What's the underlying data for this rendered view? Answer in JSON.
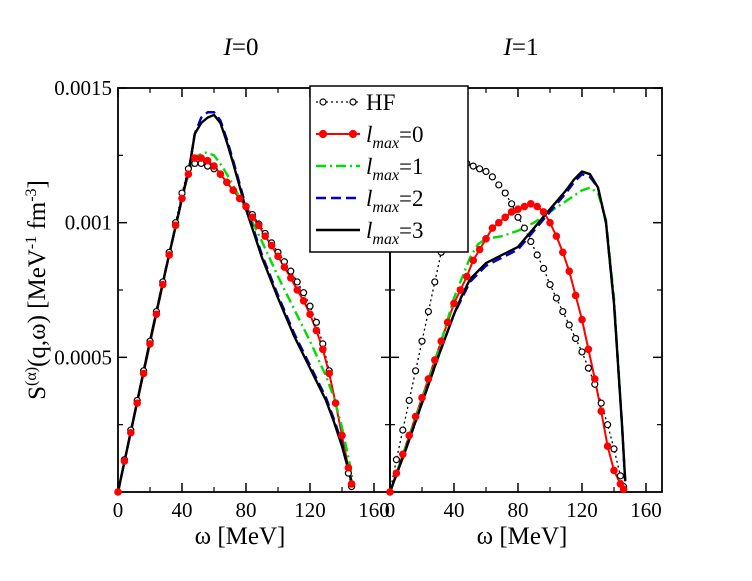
{
  "chart_data": [
    {
      "type": "line",
      "title_var": "I",
      "title_eq": "=0",
      "xlabel": "ω [MeV]",
      "ylabel": "S(α)(q,ω) [MeV-1 fm-3]",
      "ylabel_parts": {
        "S": "S",
        "sup": "(α)",
        "args": "(q,ω) [MeV",
        "sup2": "-1",
        "mid": " fm",
        "sup3": "-3",
        "end": "]"
      },
      "xlim": [
        0,
        170
      ],
      "ylim": [
        0,
        0.0015
      ],
      "xticks": [
        "0",
        "40",
        "80",
        "120",
        "160"
      ],
      "xtick_values": [
        0,
        40,
        80,
        120,
        160
      ],
      "yticks": [
        "0.0005",
        "0.001",
        "0.0015"
      ],
      "ytick_values": [
        0.0005,
        0.001,
        0.0015
      ],
      "series": [
        {
          "name": "HF",
          "color": "#000000",
          "style": "dotted",
          "marker": "open-circle",
          "x": [
            0,
            4,
            8,
            12,
            16,
            20,
            24,
            28,
            32,
            36,
            40,
            44,
            48,
            52,
            56,
            60,
            64,
            68,
            72,
            76,
            80,
            84,
            88,
            92,
            96,
            100,
            104,
            108,
            112,
            116,
            120,
            124,
            128,
            132,
            136,
            140,
            144,
            146
          ],
          "y": [
            0,
            0.00012,
            0.00023,
            0.00034,
            0.00045,
            0.00056,
            0.00067,
            0.00078,
            0.00089,
            0.001,
            0.00111,
            0.0012,
            0.00122,
            0.00122,
            0.00121,
            0.0012,
            0.00118,
            0.00115,
            0.00112,
            0.00109,
            0.00106,
            0.00103,
            0.000995,
            0.00096,
            0.000925,
            0.00089,
            0.000855,
            0.00082,
            0.00078,
            0.00074,
            0.00069,
            0.00063,
            0.00055,
            0.00045,
            0.00033,
            0.00021,
            7e-05,
            2e-05
          ]
        },
        {
          "name": "lmax=0",
          "color": "#ff0000",
          "style": "solid",
          "marker": "filled-circle",
          "x": [
            0,
            4,
            8,
            12,
            16,
            20,
            24,
            28,
            32,
            36,
            40,
            44,
            48,
            52,
            56,
            60,
            64,
            68,
            72,
            76,
            80,
            84,
            88,
            92,
            96,
            100,
            104,
            108,
            112,
            116,
            120,
            124,
            128,
            132,
            136,
            140,
            144,
            146
          ],
          "y": [
            0,
            0.000115,
            0.00022,
            0.00033,
            0.00044,
            0.00055,
            0.00066,
            0.00077,
            0.00088,
            0.00099,
            0.00109,
            0.00118,
            0.00124,
            0.00124,
            0.00123,
            0.00121,
            0.00118,
            0.00115,
            0.00112,
            0.00109,
            0.00106,
            0.00102,
            0.00099,
            0.00095,
            0.000915,
            0.000875,
            0.000835,
            0.000795,
            0.00075,
            0.00071,
            0.00066,
            0.0006,
            0.00053,
            0.00044,
            0.00033,
            0.00021,
            9e-05,
            3e-05
          ]
        },
        {
          "name": "lmax=1",
          "color": "#00dd00",
          "style": "dashdot",
          "marker": "none",
          "x": [
            0,
            10,
            20,
            30,
            40,
            45,
            50,
            55,
            60,
            65,
            70,
            80,
            90,
            100,
            110,
            120,
            130,
            135,
            140,
            145,
            147
          ],
          "y": [
            0,
            0.00028,
            0.00056,
            0.00083,
            0.00109,
            0.0012,
            0.00125,
            0.00126,
            0.00125,
            0.00121,
            0.00116,
            0.00105,
            0.00093,
            0.0008,
            0.00068,
            0.00056,
            0.00043,
            0.00035,
            0.00024,
            0.0001,
            3e-05
          ]
        },
        {
          "name": "lmax=2",
          "color": "#0000cc",
          "style": "dashed",
          "marker": "none",
          "x": [
            0,
            10,
            20,
            30,
            40,
            45,
            48,
            52,
            56,
            60,
            64,
            68,
            72,
            80,
            90,
            100,
            110,
            120,
            130,
            135,
            140,
            145,
            147
          ],
          "y": [
            0,
            0.00028,
            0.00056,
            0.00083,
            0.00109,
            0.00122,
            0.00133,
            0.00139,
            0.00141,
            0.00141,
            0.00138,
            0.00131,
            0.00123,
            0.00106,
            0.00088,
            0.00073,
            0.00059,
            0.00047,
            0.00035,
            0.00027,
            0.00018,
            6e-05,
            2e-05
          ]
        },
        {
          "name": "lmax=3",
          "color": "#000000",
          "style": "solid",
          "marker": "none",
          "x": [
            0,
            10,
            20,
            30,
            40,
            45,
            48,
            52,
            56,
            60,
            64,
            68,
            72,
            80,
            90,
            100,
            110,
            120,
            130,
            135,
            140,
            145,
            147
          ],
          "y": [
            0,
            0.00028,
            0.00056,
            0.00083,
            0.00109,
            0.00122,
            0.00133,
            0.00137,
            0.00139,
            0.0014,
            0.00137,
            0.0013,
            0.00122,
            0.00105,
            0.00087,
            0.00072,
            0.00058,
            0.00046,
            0.00034,
            0.00026,
            0.00017,
            6e-05,
            2e-05
          ]
        }
      ]
    },
    {
      "type": "line",
      "title_var": "I",
      "title_eq": "=1",
      "xlabel": "ω [MeV]",
      "xlim": [
        0,
        170
      ],
      "ylim": [
        0,
        0.0015
      ],
      "xticks": [
        "0",
        "40",
        "80",
        "120",
        "160"
      ],
      "xtick_values": [
        0,
        40,
        80,
        120,
        160
      ],
      "series": [
        {
          "name": "HF",
          "color": "#000000",
          "style": "dotted",
          "marker": "open-circle",
          "x": [
            0,
            4,
            8,
            12,
            16,
            20,
            24,
            28,
            32,
            36,
            40,
            44,
            48,
            52,
            56,
            60,
            64,
            68,
            72,
            76,
            80,
            84,
            88,
            92,
            96,
            100,
            104,
            108,
            112,
            116,
            120,
            124,
            128,
            132,
            136,
            140,
            144,
            146
          ],
          "y": [
            0,
            0.00012,
            0.00023,
            0.00034,
            0.00045,
            0.00056,
            0.00067,
            0.00078,
            0.00089,
            0.001,
            0.00111,
            0.0012,
            0.00122,
            0.00121,
            0.0012,
            0.00119,
            0.00117,
            0.00114,
            0.00111,
            0.00107,
            0.00102,
            0.00098,
            0.00093,
            0.00088,
            0.00083,
            0.00077,
            0.00072,
            0.00067,
            0.00062,
            0.00057,
            0.00052,
            0.00046,
            0.0004,
            0.00033,
            0.00025,
            0.00016,
            6e-05,
            2e-05
          ]
        },
        {
          "name": "lmax=0",
          "color": "#ff0000",
          "style": "solid",
          "marker": "filled-circle",
          "x": [
            0,
            4,
            8,
            12,
            16,
            20,
            24,
            28,
            32,
            36,
            40,
            44,
            48,
            52,
            56,
            60,
            64,
            68,
            72,
            76,
            80,
            84,
            88,
            92,
            96,
            100,
            104,
            108,
            112,
            116,
            120,
            124,
            128,
            132,
            136,
            140,
            144,
            146
          ],
          "y": [
            0,
            7e-05,
            0.00014,
            0.00021,
            0.00028,
            0.00035,
            0.00042,
            0.00049,
            0.00056,
            0.00063,
            0.0007,
            0.00075,
            0.0008,
            0.00086,
            0.0009,
            0.00094,
            0.00098,
            0.001,
            0.00102,
            0.00104,
            0.00105,
            0.00106,
            0.00107,
            0.00106,
            0.00104,
            0.001,
            0.00095,
            0.00089,
            0.00082,
            0.00073,
            0.00064,
            0.00053,
            0.00042,
            0.0003,
            0.00017,
            8e-05,
            3e-05,
            1e-05
          ]
        },
        {
          "name": "lmax=1",
          "color": "#00dd00",
          "style": "dashdot",
          "marker": "none",
          "x": [
            0,
            10,
            20,
            30,
            40,
            50,
            55,
            60,
            70,
            80,
            90,
            100,
            110,
            115,
            120,
            125,
            130,
            135,
            140,
            145,
            147
          ],
          "y": [
            0,
            0.00017,
            0.00034,
            0.00052,
            0.00072,
            0.00087,
            0.00092,
            0.00094,
            0.00095,
            0.00097,
            0.001,
            0.00104,
            0.00108,
            0.0011,
            0.00112,
            0.00113,
            0.00111,
            0.00101,
            0.00072,
            0.00025,
            4e-05
          ]
        },
        {
          "name": "lmax=2",
          "color": "#0000cc",
          "style": "dashed",
          "marker": "none",
          "x": [
            0,
            10,
            20,
            30,
            40,
            45,
            50,
            55,
            60,
            70,
            80,
            90,
            100,
            110,
            115,
            120,
            125,
            130,
            135,
            140,
            145,
            147
          ],
          "y": [
            0,
            0.00016,
            0.00033,
            0.0005,
            0.00066,
            0.00072,
            0.00078,
            0.00081,
            0.00084,
            0.00087,
            0.0009,
            0.00097,
            0.00104,
            0.00111,
            0.00115,
            0.00118,
            0.00117,
            0.00113,
            0.001,
            0.0007,
            0.00025,
            4e-05
          ]
        },
        {
          "name": "lmax=3",
          "color": "#000000",
          "style": "solid",
          "marker": "none",
          "x": [
            0,
            10,
            20,
            30,
            40,
            45,
            50,
            55,
            60,
            70,
            80,
            90,
            100,
            110,
            115,
            120,
            125,
            130,
            135,
            140,
            145,
            147
          ],
          "y": [
            0,
            0.00016,
            0.00033,
            0.0005,
            0.00066,
            0.00073,
            0.00079,
            0.00082,
            0.00085,
            0.00088,
            0.00091,
            0.00098,
            0.00105,
            0.00112,
            0.00116,
            0.00119,
            0.00118,
            0.00113,
            0.001,
            0.0007,
            0.00025,
            4e-05
          ]
        }
      ]
    }
  ],
  "legend": {
    "placement": "top-center",
    "entries": [
      {
        "base": "HF",
        "sub": "",
        "eq": ""
      },
      {
        "base": "l",
        "sub": "max",
        "eq": "=0"
      },
      {
        "base": "l",
        "sub": "max",
        "eq": "=1"
      },
      {
        "base": "l",
        "sub": "max",
        "eq": "=2"
      },
      {
        "base": "l",
        "sub": "max",
        "eq": "=3"
      }
    ]
  }
}
